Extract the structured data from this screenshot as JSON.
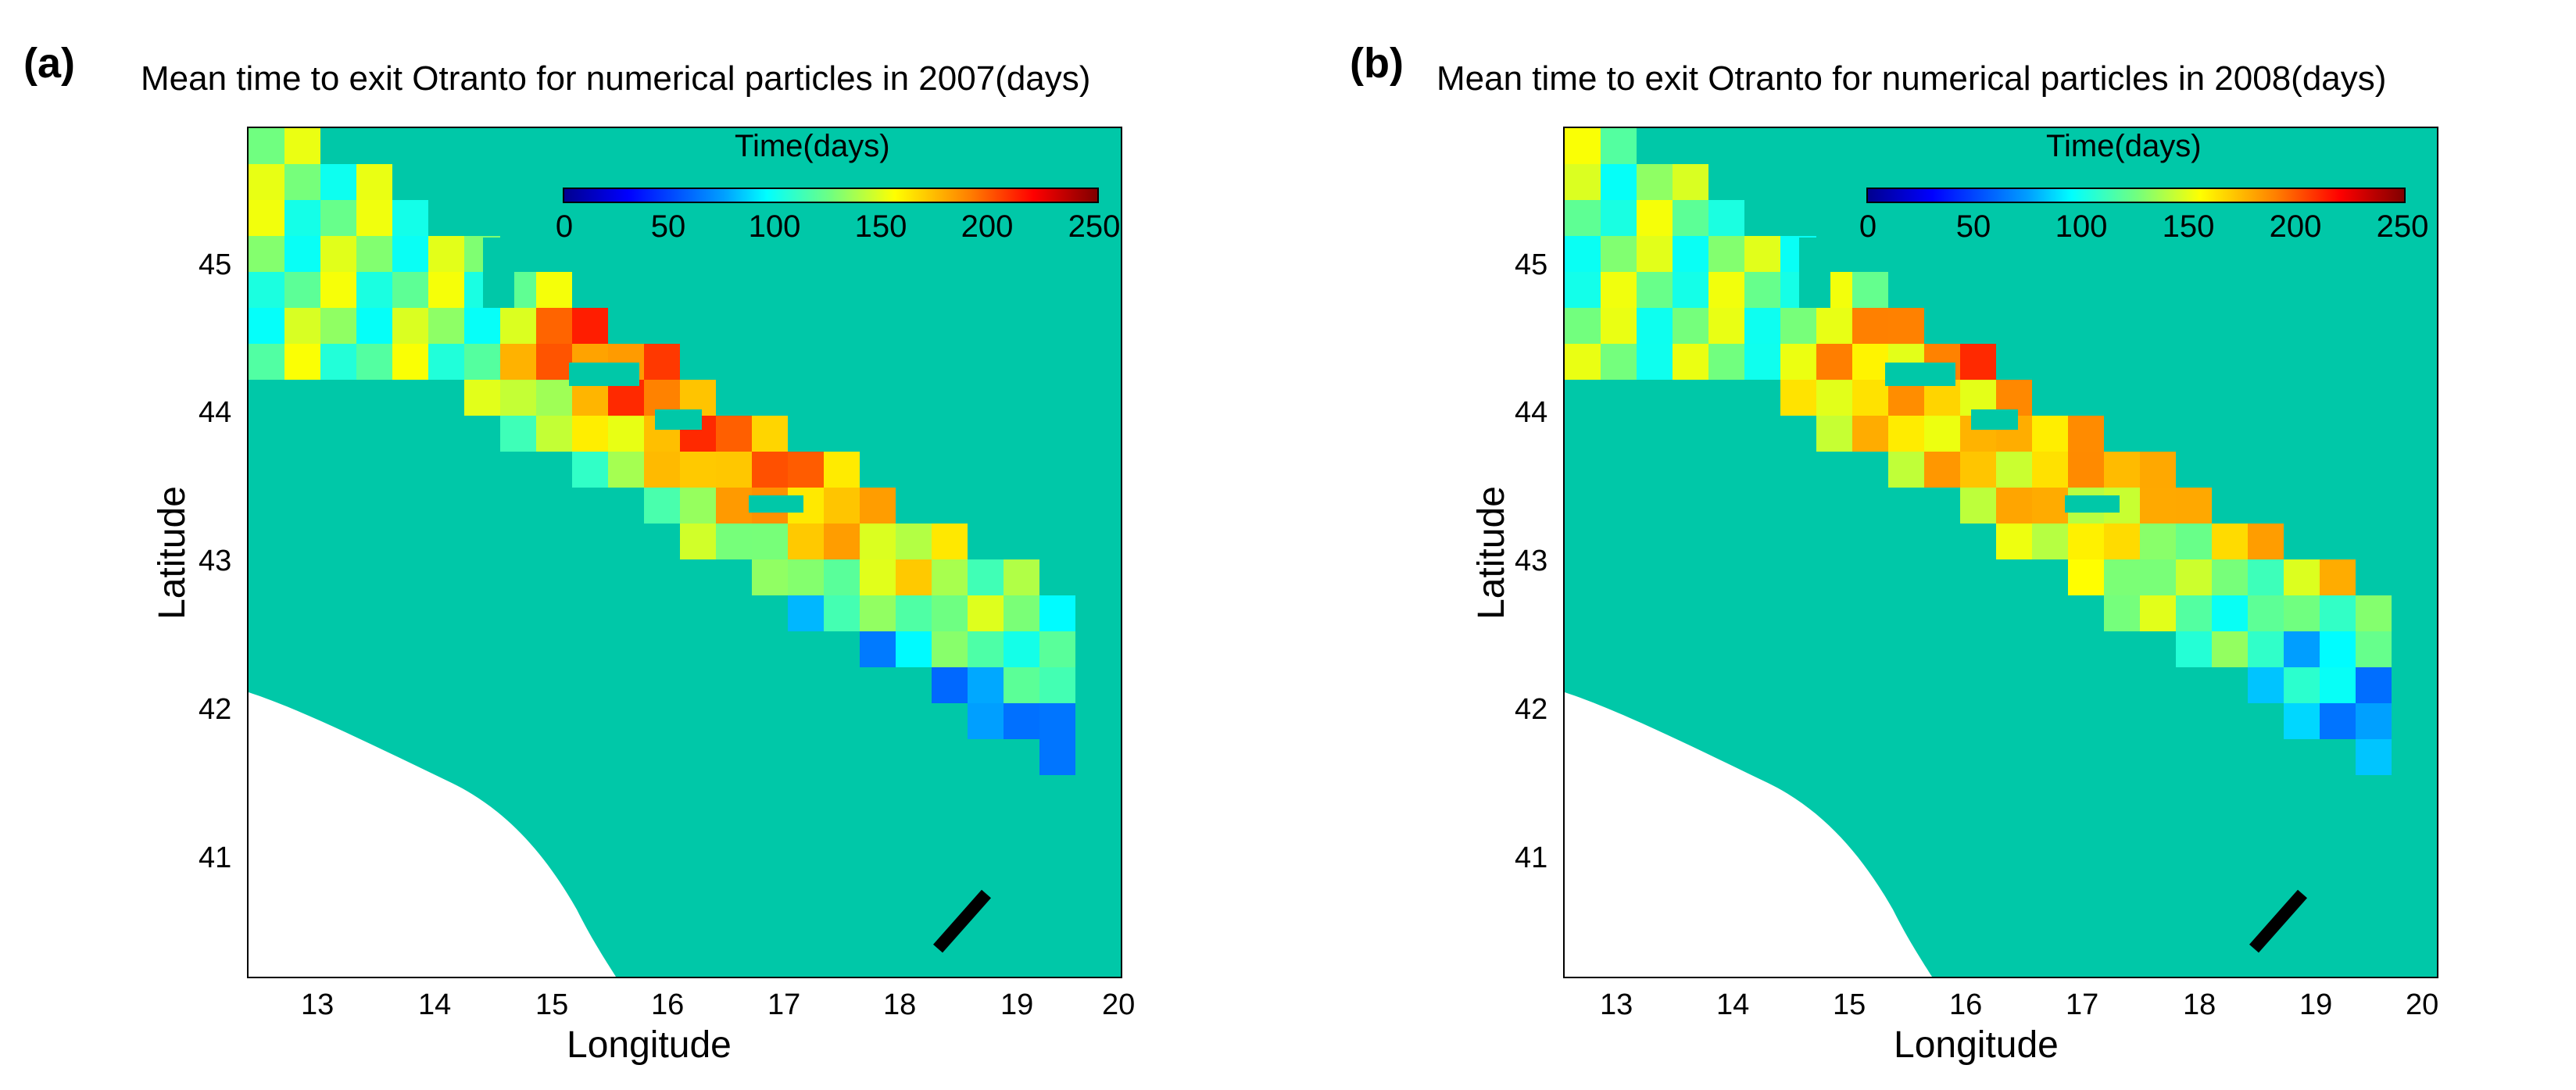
{
  "panels": [
    {
      "letter": "(a)",
      "title": "Mean time to exit Otranto for numerical particles in 2007(days)",
      "colorbar": {
        "title": "Time(days)",
        "ticks": [
          "0",
          "50",
          "100",
          "150",
          "200",
          "250"
        ],
        "range": [
          0,
          250
        ]
      },
      "xticks": [
        "13",
        "14",
        "15",
        "16",
        "17",
        "18",
        "19",
        "20"
      ],
      "yticks": [
        "45",
        "44",
        "43",
        "42",
        "41"
      ],
      "xlabel": "Longitude",
      "ylabel": "Latitude"
    },
    {
      "letter": "(b)",
      "title": "Mean time to exit Otranto for numerical particles in 2008(days)",
      "colorbar": {
        "title": "Time(days)",
        "ticks": [
          "0",
          "50",
          "100",
          "150",
          "200",
          "250"
        ],
        "range": [
          0,
          250
        ]
      },
      "xticks": [
        "13",
        "14",
        "15",
        "16",
        "17",
        "18",
        "19",
        "20"
      ],
      "yticks": [
        "45",
        "44",
        "43",
        "42",
        "41"
      ],
      "xlabel": "Longitude",
      "ylabel": "Latitude"
    }
  ],
  "map": {
    "lon_range": [
      12.5,
      20
    ],
    "lat_range": [
      40.2,
      45.9
    ],
    "colors": {
      "sea_background": "#00c8a8",
      "land": "#ffffff",
      "transect": "#000000"
    }
  }
}
